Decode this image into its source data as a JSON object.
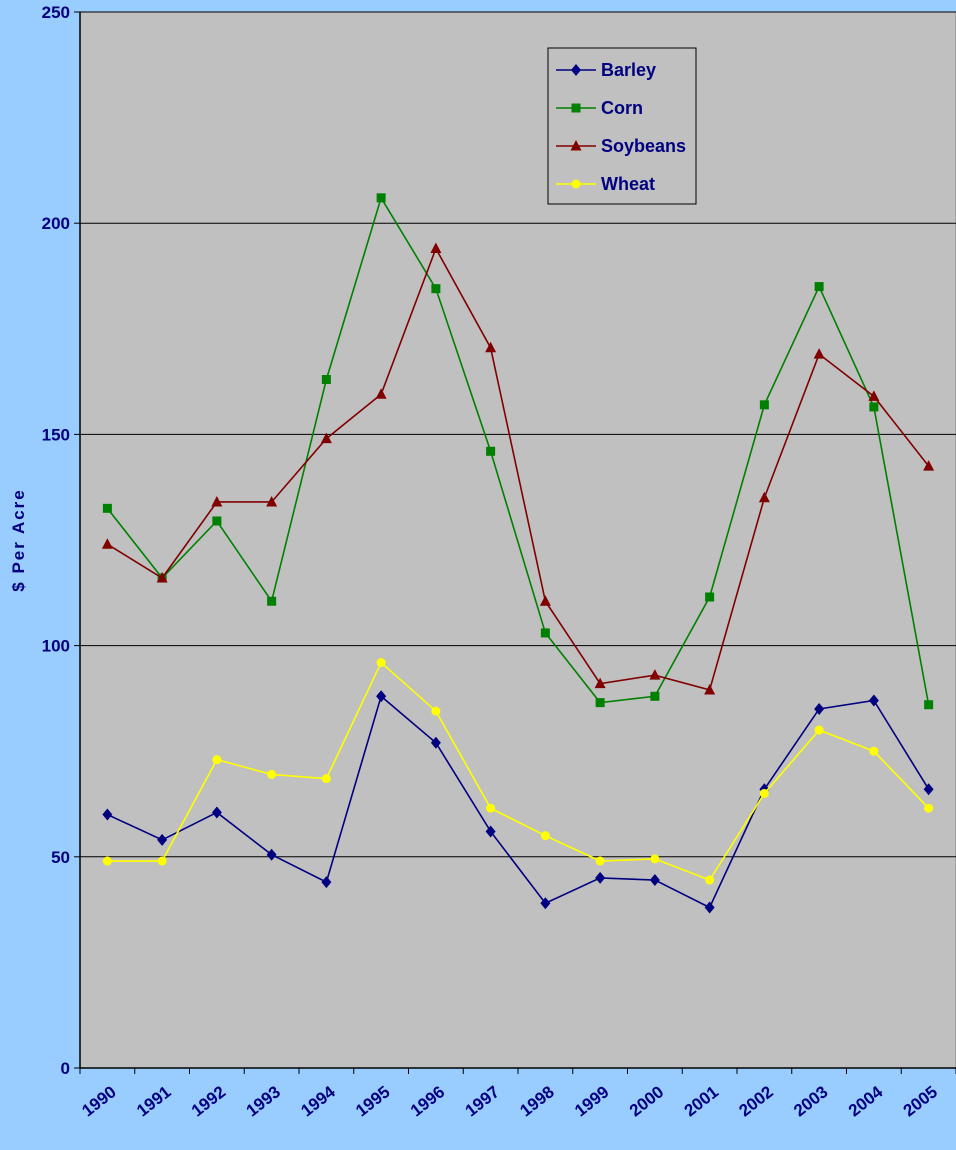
{
  "chart_data": {
    "type": "line",
    "title": "",
    "xlabel": "",
    "ylabel": "$ Per Acre",
    "ylim": [
      0,
      250
    ],
    "yticks": [
      0,
      50,
      100,
      150,
      200,
      250
    ],
    "categories": [
      "1990",
      "1991",
      "1992",
      "1993",
      "1994",
      "1995",
      "1996",
      "1997",
      "1998",
      "1999",
      "2000",
      "2001",
      "2002",
      "2003",
      "2004",
      "2005"
    ],
    "grid": true,
    "legend_position": "top-right",
    "series": [
      {
        "name": "Barley",
        "color": "#000080",
        "marker": "diamond",
        "values": [
          60,
          54,
          60.5,
          50.5,
          44,
          88,
          77,
          56,
          39,
          45,
          44.5,
          38,
          66,
          85,
          87,
          66
        ]
      },
      {
        "name": "Corn",
        "color": "#008000",
        "marker": "square",
        "values": [
          132.5,
          116,
          129.5,
          110.5,
          163,
          206,
          184.5,
          146,
          103,
          86.5,
          88,
          111.5,
          157,
          185,
          156.5,
          86
        ]
      },
      {
        "name": "Soybeans",
        "color": "#800000",
        "marker": "triangle",
        "values": [
          124,
          116,
          134,
          134,
          149,
          159.5,
          194,
          170.5,
          110.5,
          91,
          93,
          89.5,
          135,
          169,
          159,
          142.5
        ]
      },
      {
        "name": "Wheat",
        "color": "#ffff00",
        "marker": "circle",
        "values": [
          49,
          49,
          73,
          69.5,
          68.5,
          96,
          84.5,
          61.5,
          55,
          49,
          49.5,
          44.5,
          65,
          80,
          75,
          61.5
        ]
      }
    ]
  }
}
